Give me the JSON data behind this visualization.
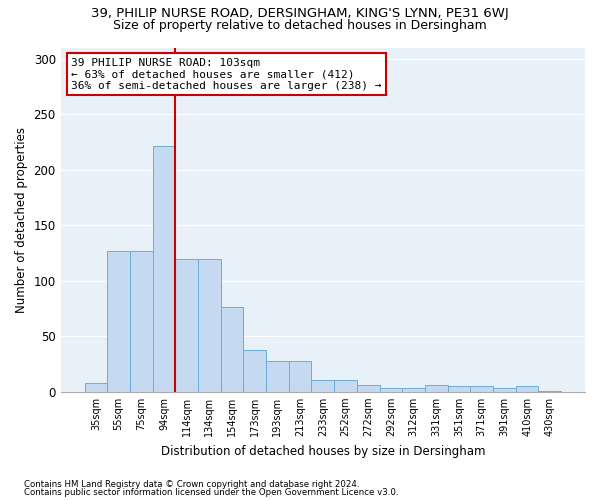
{
  "title1": "39, PHILIP NURSE ROAD, DERSINGHAM, KING'S LYNN, PE31 6WJ",
  "title2": "Size of property relative to detached houses in Dersingham",
  "xlabel": "Distribution of detached houses by size in Dersingham",
  "ylabel": "Number of detached properties",
  "categories": [
    "35sqm",
    "55sqm",
    "75sqm",
    "94sqm",
    "114sqm",
    "134sqm",
    "154sqm",
    "173sqm",
    "193sqm",
    "213sqm",
    "233sqm",
    "252sqm",
    "272sqm",
    "292sqm",
    "312sqm",
    "331sqm",
    "351sqm",
    "371sqm",
    "391sqm",
    "410sqm",
    "430sqm"
  ],
  "values": [
    8,
    127,
    127,
    221,
    120,
    120,
    76,
    38,
    28,
    28,
    11,
    11,
    6,
    3,
    3,
    6,
    5,
    5,
    3,
    5,
    1
  ],
  "bar_color": "#c5d9f0",
  "bar_edge_color": "#6baed6",
  "vline_x": 3.5,
  "vline_color": "#cc0000",
  "annotation_text": "39 PHILIP NURSE ROAD: 103sqm\n← 63% of detached houses are smaller (412)\n36% of semi-detached houses are larger (238) →",
  "annotation_box_color": "#ffffff",
  "annotation_box_edge_color": "#cc0000",
  "ylim": [
    0,
    310
  ],
  "yticks": [
    0,
    50,
    100,
    150,
    200,
    250,
    300
  ],
  "footnote1": "Contains HM Land Registry data © Crown copyright and database right 2024.",
  "footnote2": "Contains public sector information licensed under the Open Government Licence v3.0.",
  "bg_color": "#e8f0f8",
  "title1_fontsize": 9.5,
  "title2_fontsize": 9
}
